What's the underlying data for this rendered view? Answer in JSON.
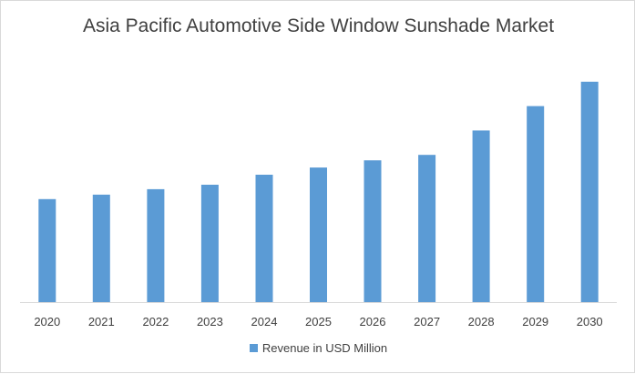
{
  "chart_data": {
    "type": "bar",
    "title": "Asia Pacific Automotive Side Window Sunshade Market",
    "categories": [
      "2020",
      "2021",
      "2022",
      "2023",
      "2024",
      "2025",
      "2026",
      "2027",
      "2028",
      "2029",
      "2030"
    ],
    "series": [
      {
        "name": "Revenue in USD Million",
        "values": [
          114,
          119,
          125,
          130,
          141,
          149,
          157,
          163,
          190,
          217,
          244
        ],
        "color": "#5b9bd5"
      }
    ],
    "xlabel": "",
    "ylabel": "",
    "ylim": [
      0,
      270
    ],
    "grid": false,
    "legend_position": "bottom"
  }
}
